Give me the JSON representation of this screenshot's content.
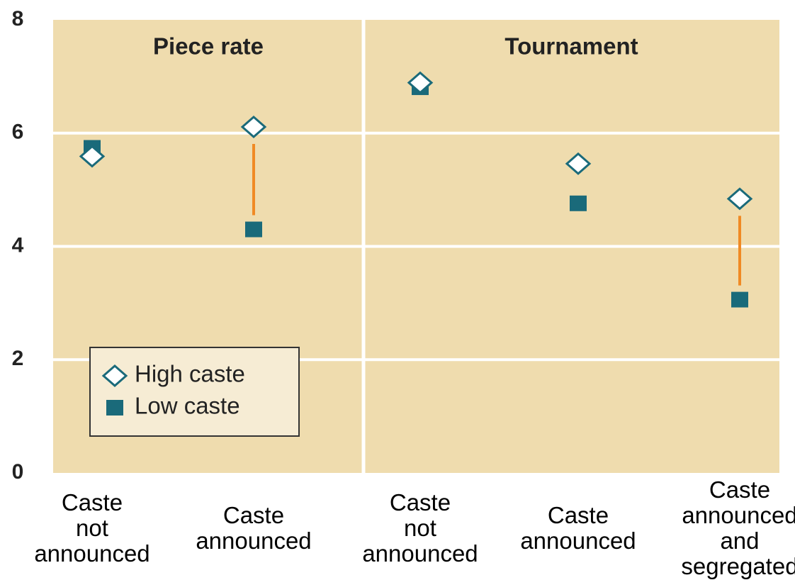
{
  "chart_data": {
    "type": "dot",
    "groups": [
      {
        "name": "Piece rate",
        "categories": [
          "Caste\nnot\nannounced",
          "Caste\nannounced"
        ]
      },
      {
        "name": "Tournament",
        "categories": [
          "Caste\nnot\nannounced",
          "Caste\nannounced",
          "Caste\nannounced\nand\nsegregated"
        ]
      }
    ],
    "series": [
      {
        "name": "High caste",
        "color": "#1a6a7a",
        "marker": "diamond",
        "values": [
          5.59,
          6.11,
          6.89,
          5.46,
          4.84
        ]
      },
      {
        "name": "Low caste",
        "color": "#1a6a7a",
        "marker": "square",
        "values": [
          5.74,
          4.3,
          6.81,
          4.76,
          3.06
        ]
      }
    ],
    "ylim": [
      0,
      8
    ],
    "yticks": [
      0,
      2,
      4,
      6,
      8
    ],
    "grid": true,
    "legend": "lower left"
  }
}
